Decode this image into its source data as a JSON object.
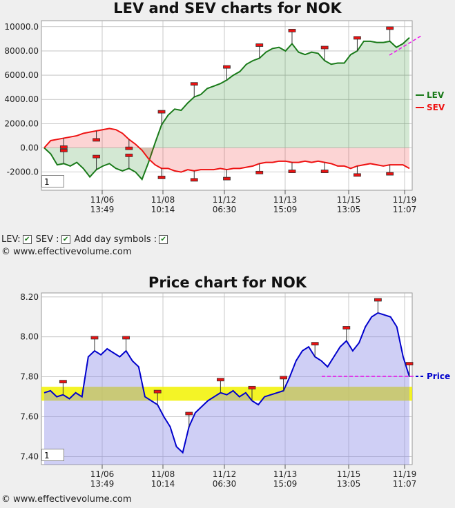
{
  "chart_data": [
    {
      "type": "line",
      "title": "LEV and SEV charts for NOK",
      "ylim": [
        -3500,
        10500
      ],
      "y_ticks": [
        "10000.0",
        "8000.00",
        "6000.00",
        "4000.00",
        "2000.00",
        "0.00",
        "-2000.0"
      ],
      "y_tick_values": [
        10000,
        8000,
        6000,
        4000,
        2000,
        0,
        -2000
      ],
      "x_ticks": [
        {
          "date": "11/06",
          "time": "13:49"
        },
        {
          "date": "11/08",
          "time": "10:14"
        },
        {
          "date": "11/12",
          "time": "06:30"
        },
        {
          "date": "11/13",
          "time": "15:09"
        },
        {
          "date": "11/15",
          "time": "13:05"
        },
        {
          "date": "11/19",
          "time": "11:07"
        }
      ],
      "legend": {
        "placement": "right",
        "entries": [
          {
            "name": "LEV",
            "color": "#197a19"
          },
          {
            "name": "SEV",
            "color": "#ee1111"
          }
        ]
      },
      "series": [
        {
          "name": "LEV",
          "color": "#197a19",
          "values": [
            0,
            -500,
            -1400,
            -1300,
            -1500,
            -1200,
            -1700,
            -2400,
            -1800,
            -1500,
            -1300,
            -1700,
            -1900,
            -1700,
            -2000,
            -2600,
            -1200,
            400,
            1900,
            2700,
            3200,
            3100,
            3700,
            4200,
            4400,
            4900,
            5100,
            5300,
            5600,
            6000,
            6300,
            6900,
            7200,
            7400,
            7900,
            8200,
            8300,
            8000,
            8600,
            7900,
            7700,
            7900,
            7800,
            7200,
            6900,
            7000,
            7000,
            7700,
            8000,
            8800,
            8800,
            8700,
            8700,
            8800,
            8300,
            8600,
            9100
          ]
        },
        {
          "name": "SEV",
          "color": "#ee1111",
          "values": [
            0,
            600,
            700,
            800,
            900,
            1000,
            1200,
            1300,
            1400,
            1500,
            1600,
            1500,
            1200,
            700,
            300,
            -200,
            -900,
            -1400,
            -1700,
            -1700,
            -1900,
            -2000,
            -1800,
            -1900,
            -1800,
            -1800,
            -1800,
            -1700,
            -1800,
            -1700,
            -1700,
            -1600,
            -1500,
            -1300,
            -1200,
            -1200,
            -1100,
            -1100,
            -1200,
            -1200,
            -1100,
            -1200,
            -1100,
            -1200,
            -1300,
            -1500,
            -1500,
            -1700,
            -1500,
            -1400,
            -1300,
            -1400,
            -1500,
            -1400,
            -1400,
            -1400,
            -1700
          ]
        }
      ],
      "annotations": "red day markers above and below lines; dashed magenta trend line at right end"
    },
    {
      "type": "line",
      "title": "Price chart for NOK",
      "ylim": [
        7.36,
        8.22
      ],
      "y_ticks": [
        "8.20",
        "8.00",
        "7.80",
        "7.60",
        "7.40"
      ],
      "y_tick_values": [
        8.2,
        8.0,
        7.8,
        7.6,
        7.4
      ],
      "x_ticks": [
        {
          "date": "11/06",
          "time": "13:49"
        },
        {
          "date": "11/08",
          "time": "10:14"
        },
        {
          "date": "11/12",
          "time": "06:30"
        },
        {
          "date": "11/13",
          "time": "15:09"
        },
        {
          "date": "11/15",
          "time": "13:05"
        },
        {
          "date": "11/19",
          "time": "11:07"
        }
      ],
      "legend": {
        "placement": "right",
        "entries": [
          {
            "name": "Price",
            "color": "#0000cc"
          }
        ]
      },
      "band": {
        "from": 7.68,
        "to": 7.75
      },
      "series": [
        {
          "name": "Price",
          "color": "#0000cc",
          "values": [
            7.72,
            7.73,
            7.7,
            7.71,
            7.69,
            7.72,
            7.7,
            7.9,
            7.93,
            7.91,
            7.94,
            7.92,
            7.9,
            7.93,
            7.88,
            7.85,
            7.7,
            7.68,
            7.66,
            7.6,
            7.55,
            7.45,
            7.42,
            7.55,
            7.62,
            7.65,
            7.68,
            7.7,
            7.72,
            7.71,
            7.73,
            7.7,
            7.72,
            7.68,
            7.66,
            7.7,
            7.71,
            7.72,
            7.73,
            7.8,
            7.88,
            7.93,
            7.95,
            7.9,
            7.88,
            7.85,
            7.9,
            7.95,
            7.98,
            7.93,
            7.97,
            8.05,
            8.1,
            8.12,
            8.11,
            8.1,
            8.05,
            7.9,
            7.8
          ]
        }
      ]
    }
  ],
  "text": {
    "lev_title": "LEV and SEV charts for NOK",
    "price_title": "Price chart for NOK",
    "lev_legend": "LEV",
    "sev_legend": "SEV",
    "price_legend": "Price",
    "zoom_value": "1",
    "lev_checkbox_label": "LEV:",
    "sev_checkbox_label": "SEV :",
    "day_symbols_label": "Add day symbols :",
    "copyright": "© www.effectivevolume.com"
  }
}
